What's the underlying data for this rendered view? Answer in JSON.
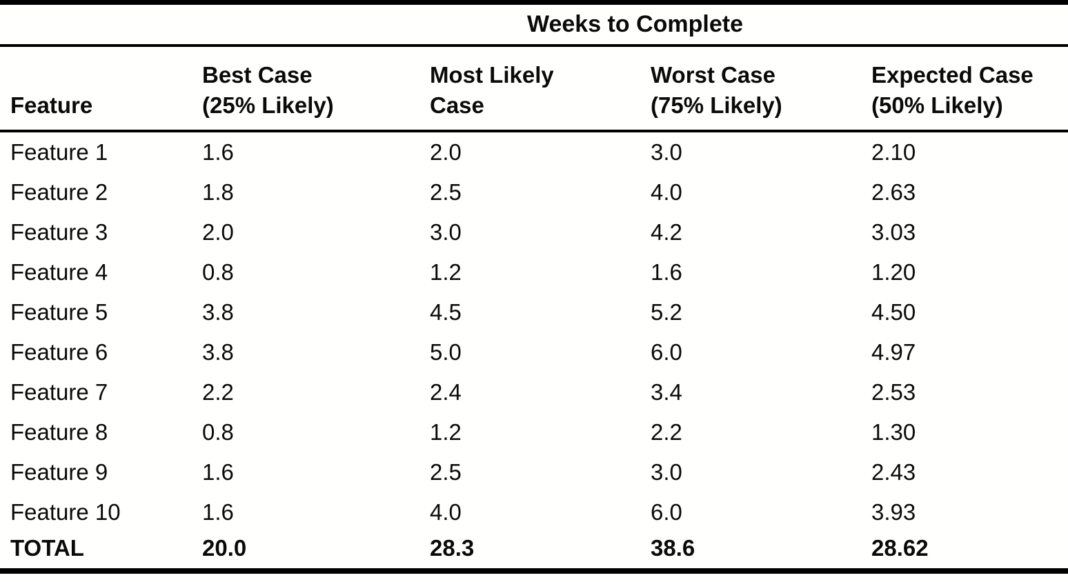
{
  "chart_data": {
    "type": "table",
    "title": "Weeks to Complete",
    "columns": [
      {
        "line1": "Feature",
        "line2": ""
      },
      {
        "line1": "Best Case",
        "line2": "(25% Likely)"
      },
      {
        "line1": "Most Likely",
        "line2": "Case"
      },
      {
        "line1": "Worst Case",
        "line2": "(75% Likely)"
      },
      {
        "line1": "Expected Case",
        "line2": "(50% Likely)"
      }
    ],
    "rows": [
      [
        "Feature 1",
        "1.6",
        "2.0",
        "3.0",
        "2.10"
      ],
      [
        "Feature 2",
        "1.8",
        "2.5",
        "4.0",
        "2.63"
      ],
      [
        "Feature 3",
        "2.0",
        "3.0",
        "4.2",
        "3.03"
      ],
      [
        "Feature 4",
        "0.8",
        "1.2",
        "1.6",
        "1.20"
      ],
      [
        "Feature 5",
        "3.8",
        "4.5",
        "5.2",
        "4.50"
      ],
      [
        "Feature 6",
        "3.8",
        "5.0",
        "6.0",
        "4.97"
      ],
      [
        "Feature 7",
        "2.2",
        "2.4",
        "3.4",
        "2.53"
      ],
      [
        "Feature 8",
        "0.8",
        "1.2",
        "2.2",
        "1.30"
      ],
      [
        "Feature 9",
        "1.6",
        "2.5",
        "3.0",
        "2.43"
      ],
      [
        "Feature 10",
        "1.6",
        "4.0",
        "6.0",
        "3.93"
      ]
    ],
    "total_row": [
      "TOTAL",
      "20.0",
      "28.3",
      "38.6",
      "28.62"
    ],
    "colors": {
      "text": "#0a0a0a",
      "rule": "#000000",
      "background": "#fffffd"
    }
  }
}
